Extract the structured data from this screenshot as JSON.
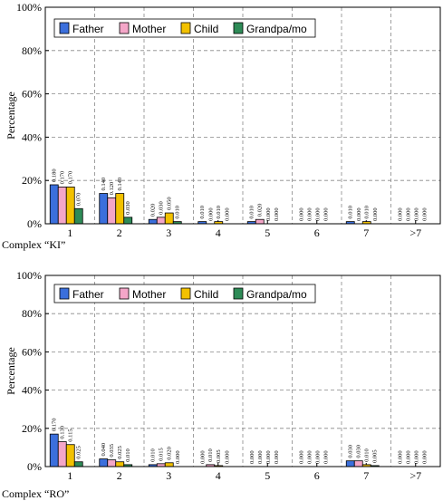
{
  "chart_data": [
    {
      "type": "bar",
      "caption": "Complex “KI”",
      "ylabel": "Percentage",
      "categories": [
        "1",
        "2",
        "3",
        "4",
        "5",
        "6",
        "7",
        ">7"
      ],
      "ylim": [
        0,
        100
      ],
      "yticks": [
        "0%",
        "20%",
        "40%",
        "60%",
        "80%",
        "100%"
      ],
      "grid": true,
      "legend_position": "top-left",
      "series": [
        {
          "name": "Father",
          "color": "#3b6fdc",
          "values": [
            0.18,
            0.14,
            0.02,
            0.01,
            0.01,
            0.0,
            0.01,
            0.0
          ]
        },
        {
          "name": "Mother",
          "color": "#f4a6c8",
          "values": [
            0.17,
            0.12,
            0.03,
            0.0,
            0.02,
            0.0,
            0.0,
            0.0
          ]
        },
        {
          "name": "Child",
          "color": "#f2c100",
          "values": [
            0.17,
            0.14,
            0.05,
            0.01,
            0.0,
            0.0,
            0.01,
            0.0
          ]
        },
        {
          "name": "Grandpa/mo",
          "color": "#2e8b57",
          "values": [
            0.07,
            0.03,
            0.01,
            0.0,
            0.0,
            0.0,
            0.0,
            0.0
          ]
        }
      ],
      "labels": [
        [
          "0.180",
          "0.170",
          "0.170",
          "0.070"
        ],
        [
          "0.140",
          "0.120",
          "0.140",
          "0.030"
        ],
        [
          "0.020",
          "0.030",
          "0.050",
          "0.010"
        ],
        [
          "0.010",
          "0.000",
          "0.010",
          "0.000"
        ],
        [
          "0.010",
          "0.020",
          "0.000",
          "0.000"
        ],
        [
          "0.000",
          "0.000",
          "0.000",
          "0.000"
        ],
        [
          "0.010",
          "0.000",
          "0.010",
          "0.000"
        ],
        [
          "0.000",
          "0.000",
          "0.000",
          "0.000"
        ]
      ]
    },
    {
      "type": "bar",
      "caption": "Complex “RO”",
      "ylabel": "Percentage",
      "categories": [
        "1",
        "2",
        "3",
        "4",
        "5",
        "6",
        "7",
        ">7"
      ],
      "ylim": [
        0,
        100
      ],
      "yticks": [
        "0%",
        "20%",
        "40%",
        "60%",
        "80%",
        "100%"
      ],
      "grid": true,
      "legend_position": "top-left",
      "series": [
        {
          "name": "Father",
          "color": "#3b6fdc",
          "values": [
            0.17,
            0.04,
            0.01,
            0.0,
            0.0,
            0.0,
            0.03,
            0.0
          ]
        },
        {
          "name": "Mother",
          "color": "#f4a6c8",
          "values": [
            0.13,
            0.035,
            0.015,
            0.01,
            0.0,
            0.0,
            0.03,
            0.0
          ]
        },
        {
          "name": "Child",
          "color": "#f2c100",
          "values": [
            0.115,
            0.025,
            0.02,
            0.005,
            0.0,
            0.0,
            0.01,
            0.0
          ]
        },
        {
          "name": "Grandpa/mo",
          "color": "#2e8b57",
          "values": [
            0.025,
            0.01,
            0.0,
            0.0,
            0.0,
            0.0,
            0.005,
            0.0
          ]
        }
      ],
      "labels": [
        [
          "0.170",
          "0.130",
          "0.115",
          "0.025"
        ],
        [
          "0.040",
          "0.035",
          "0.025",
          "0.010"
        ],
        [
          "0.010",
          "0.015",
          "0.020",
          "0.000"
        ],
        [
          "0.000",
          "0.010",
          "0.005",
          "0.000"
        ],
        [
          "0.000",
          "0.000",
          "0.000",
          "0.000"
        ],
        [
          "0.000",
          "0.000",
          "0.000",
          "0.000"
        ],
        [
          "0.030",
          "0.030",
          "0.010",
          "0.005"
        ],
        [
          "0.000",
          "0.000",
          "0.000",
          "0.000"
        ]
      ]
    }
  ]
}
